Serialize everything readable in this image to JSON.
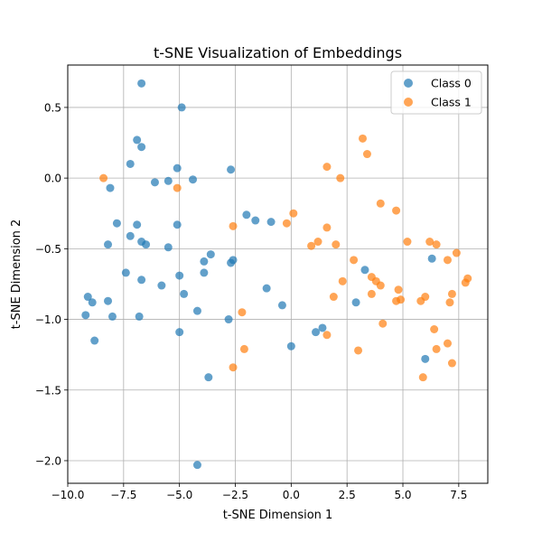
{
  "chart_data": {
    "type": "scatter",
    "title": "t-SNE Visualization of Embeddings",
    "xlabel": "t-SNE Dimension 1",
    "ylabel": "t-SNE Dimension 2",
    "xlim": [
      -10.0,
      8.8
    ],
    "ylim": [
      -2.16,
      0.8
    ],
    "x_ticks": [
      -10.0,
      -7.5,
      -5.0,
      -2.5,
      0.0,
      2.5,
      5.0,
      7.5
    ],
    "x_tick_labels": [
      "−10.0",
      "−7.5",
      "−5.0",
      "−2.5",
      "0.0",
      "2.5",
      "5.0",
      "7.5"
    ],
    "y_ticks": [
      -2.0,
      -1.5,
      -1.0,
      -0.5,
      0.0,
      0.5
    ],
    "y_tick_labels": [
      "−2.0",
      "−1.5",
      "−1.0",
      "−0.5",
      "0.0",
      "0.5"
    ],
    "grid": true,
    "legend_position": "upper right",
    "series": [
      {
        "name": "Class 0",
        "color": "#1f77b4",
        "points": [
          [
            -6.7,
            0.67
          ],
          [
            -4.9,
            0.5
          ],
          [
            -6.9,
            0.27
          ],
          [
            -6.7,
            0.22
          ],
          [
            -7.2,
            0.1
          ],
          [
            -5.1,
            0.07
          ],
          [
            -2.7,
            0.06
          ],
          [
            -5.5,
            -0.02
          ],
          [
            -4.4,
            -0.01
          ],
          [
            -6.1,
            -0.03
          ],
          [
            -8.1,
            -0.07
          ],
          [
            -2.0,
            -0.26
          ],
          [
            -1.6,
            -0.3
          ],
          [
            -0.9,
            -0.31
          ],
          [
            -7.8,
            -0.32
          ],
          [
            -6.9,
            -0.33
          ],
          [
            -5.1,
            -0.33
          ],
          [
            -7.2,
            -0.41
          ],
          [
            -6.7,
            -0.45
          ],
          [
            -6.5,
            -0.47
          ],
          [
            -8.2,
            -0.47
          ],
          [
            -5.5,
            -0.49
          ],
          [
            -3.6,
            -0.54
          ],
          [
            -2.6,
            -0.58
          ],
          [
            -2.7,
            -0.6
          ],
          [
            -3.9,
            -0.59
          ],
          [
            -7.4,
            -0.67
          ],
          [
            -5.0,
            -0.69
          ],
          [
            -3.9,
            -0.67
          ],
          [
            -6.7,
            -0.72
          ],
          [
            -5.8,
            -0.76
          ],
          [
            -1.1,
            -0.78
          ],
          [
            -4.8,
            -0.82
          ],
          [
            -9.1,
            -0.84
          ],
          [
            -8.2,
            -0.87
          ],
          [
            -8.9,
            -0.88
          ],
          [
            -0.4,
            -0.9
          ],
          [
            -4.2,
            -0.94
          ],
          [
            -9.2,
            -0.97
          ],
          [
            -8.0,
            -0.98
          ],
          [
            -6.8,
            -0.98
          ],
          [
            -2.8,
            -1.0
          ],
          [
            -5.0,
            -1.09
          ],
          [
            1.1,
            -1.09
          ],
          [
            1.4,
            -1.06
          ],
          [
            -8.8,
            -1.15
          ],
          [
            0.0,
            -1.19
          ],
          [
            -3.7,
            -1.41
          ],
          [
            -4.2,
            -2.03
          ],
          [
            3.3,
            -0.65
          ],
          [
            2.9,
            -0.88
          ],
          [
            6.3,
            -0.57
          ],
          [
            6.0,
            -1.28
          ]
        ]
      },
      {
        "name": "Class 1",
        "color": "#ff7f0e",
        "points": [
          [
            -8.4,
            0.0
          ],
          [
            -5.1,
            -0.07
          ],
          [
            -2.6,
            -0.34
          ],
          [
            0.1,
            -0.25
          ],
          [
            -0.2,
            -0.32
          ],
          [
            1.6,
            0.08
          ],
          [
            2.2,
            0.0
          ],
          [
            3.2,
            0.28
          ],
          [
            3.4,
            0.17
          ],
          [
            1.6,
            -0.35
          ],
          [
            0.9,
            -0.48
          ],
          [
            1.2,
            -0.45
          ],
          [
            2.0,
            -0.47
          ],
          [
            2.8,
            -0.58
          ],
          [
            3.6,
            -0.7
          ],
          [
            2.3,
            -0.73
          ],
          [
            3.8,
            -0.73
          ],
          [
            4.0,
            -0.76
          ],
          [
            4.0,
            -0.18
          ],
          [
            4.7,
            -0.23
          ],
          [
            5.2,
            -0.45
          ],
          [
            6.2,
            -0.45
          ],
          [
            6.5,
            -0.47
          ],
          [
            7.0,
            -0.58
          ],
          [
            7.4,
            -0.53
          ],
          [
            7.9,
            -0.71
          ],
          [
            7.8,
            -0.74
          ],
          [
            7.2,
            -0.82
          ],
          [
            1.9,
            -0.84
          ],
          [
            3.6,
            -0.82
          ],
          [
            4.8,
            -0.79
          ],
          [
            4.9,
            -0.86
          ],
          [
            4.7,
            -0.87
          ],
          [
            5.8,
            -0.87
          ],
          [
            6.0,
            -0.84
          ],
          [
            7.1,
            -0.88
          ],
          [
            -2.2,
            -0.95
          ],
          [
            4.1,
            -1.03
          ],
          [
            1.6,
            -1.11
          ],
          [
            3.0,
            -1.22
          ],
          [
            6.4,
            -1.07
          ],
          [
            7.0,
            -1.17
          ],
          [
            6.5,
            -1.21
          ],
          [
            -2.1,
            -1.21
          ],
          [
            -2.6,
            -1.34
          ],
          [
            7.2,
            -1.31
          ],
          [
            5.9,
            -1.41
          ]
        ]
      }
    ]
  }
}
